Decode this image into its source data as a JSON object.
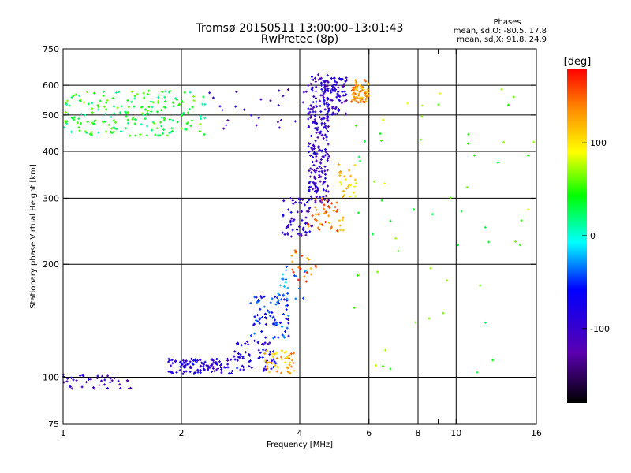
{
  "chart_data": {
    "type": "scatter",
    "title": "Tromsø 20150511 13:00:00–13:01:43",
    "subtitle": "RwPretec (8p)",
    "phase_box": {
      "heading": "Phases",
      "line_o": "mean, sd,O: -80.5, 17.8",
      "line_x": "mean, sd,X:  91.8, 24.9"
    },
    "xlabel": "Frequency [MHz]",
    "ylabel": "Stationary phase Virtual Height [km]",
    "x_scale": "log",
    "y_scale": "log",
    "xlim": [
      1,
      16
    ],
    "ylim": [
      75,
      750
    ],
    "x_ticks": [
      1,
      2,
      4,
      6,
      8,
      9,
      10,
      16
    ],
    "x_tick_labels": [
      "1",
      "2",
      "4",
      "6",
      "8",
      "",
      "10",
      "16"
    ],
    "x_grid": [
      2,
      4,
      6,
      8,
      10
    ],
    "y_ticks": [
      75,
      100,
      200,
      300,
      400,
      500,
      600,
      750
    ],
    "y_tick_labels": [
      "75",
      "100",
      "200",
      "300",
      "400",
      "500",
      "600",
      "750"
    ],
    "y_grid": [
      100,
      200,
      300,
      400,
      500,
      600
    ],
    "grid": true,
    "colorbar": {
      "label": "[deg]",
      "range": [
        -180,
        180
      ],
      "ticks": [
        100,
        0,
        -100
      ],
      "tick_labels": [
        "100",
        "0",
        "-100"
      ],
      "colors": [
        "#ff0000",
        "#ff9900",
        "#ffff00",
        "#00ff00",
        "#00ffff",
        "#0000ff",
        "#6600cc",
        "#000000"
      ]
    },
    "clusters": [
      {
        "phase": -100,
        "x": [
          1.0,
          1.5
        ],
        "y": [
          93,
          102
        ],
        "count": 40
      },
      {
        "phase": -85,
        "x": [
          1.85,
          2.7
        ],
        "y": [
          102,
          112
        ],
        "count": 110
      },
      {
        "phase": -80,
        "x": [
          2.7,
          3.5
        ],
        "y": [
          104,
          125
        ],
        "count": 60
      },
      {
        "phase": -55,
        "x": [
          3.0,
          3.75
        ],
        "y": [
          125,
          165
        ],
        "count": 80
      },
      {
        "phase": 120,
        "x": [
          3.25,
          3.9
        ],
        "y": [
          102,
          118
        ],
        "count": 45
      },
      {
        "phase": -20,
        "x": [
          3.5,
          4.2
        ],
        "y": [
          160,
          200
        ],
        "count": 22
      },
      {
        "phase": -95,
        "x": [
          3.6,
          4.3
        ],
        "y": [
          235,
          300
        ],
        "count": 60
      },
      {
        "phase": -100,
        "x": [
          4.2,
          4.75
        ],
        "y": [
          290,
          640
        ],
        "count": 230
      },
      {
        "phase": -100,
        "x": [
          4.6,
          5.3
        ],
        "y": [
          500,
          630
        ],
        "count": 80
      },
      {
        "phase": 140,
        "x": [
          4.2,
          5.2
        ],
        "y": [
          245,
          300
        ],
        "count": 45
      },
      {
        "phase": 110,
        "x": [
          5.0,
          5.6
        ],
        "y": [
          300,
          370
        ],
        "count": 25
      },
      {
        "phase": 130,
        "x": [
          5.4,
          6.0
        ],
        "y": [
          540,
          620
        ],
        "count": 70
      },
      {
        "phase": 40,
        "x": [
          1.0,
          2.3
        ],
        "y": [
          440,
          580
        ],
        "count": 200
      },
      {
        "phase": -110,
        "x": [
          2.3,
          4.5
        ],
        "y": [
          450,
          590
        ],
        "count": 28
      },
      {
        "phase": 140,
        "x": [
          3.8,
          4.4
        ],
        "y": [
          180,
          220
        ],
        "count": 20
      },
      {
        "phase": 60,
        "x": [
          5.5,
          16
        ],
        "y": [
          95,
          600
        ],
        "count": 60
      }
    ]
  }
}
